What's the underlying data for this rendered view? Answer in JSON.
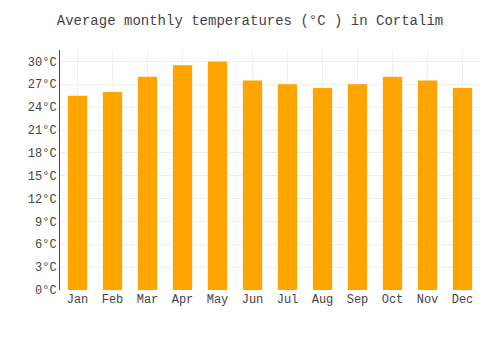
{
  "chart_data": {
    "type": "bar",
    "title": "Average monthly temperatures (°C ) in Cortalim",
    "categories": [
      "Jan",
      "Feb",
      "Mar",
      "Apr",
      "May",
      "Jun",
      "Jul",
      "Aug",
      "Sep",
      "Oct",
      "Nov",
      "Dec"
    ],
    "values": [
      25.5,
      26.0,
      28.0,
      29.5,
      30.0,
      27.5,
      27.0,
      26.5,
      27.0,
      28.0,
      27.5,
      26.5
    ],
    "color": "#FFA500",
    "ylim": [
      0,
      31.5
    ],
    "yticks": [
      {
        "value": 0,
        "label": "0°C"
      },
      {
        "value": 3,
        "label": "3°C"
      },
      {
        "value": 6,
        "label": "6°C"
      },
      {
        "value": 9,
        "label": "9°C"
      },
      {
        "value": 12,
        "label": "12°C"
      },
      {
        "value": 15,
        "label": "15°C"
      },
      {
        "value": 18,
        "label": "18°C"
      },
      {
        "value": 21,
        "label": "21°C"
      },
      {
        "value": 24,
        "label": "24°C"
      },
      {
        "value": 27,
        "label": "27°C"
      },
      {
        "value": 30,
        "label": "30°C"
      }
    ],
    "grid": true
  }
}
